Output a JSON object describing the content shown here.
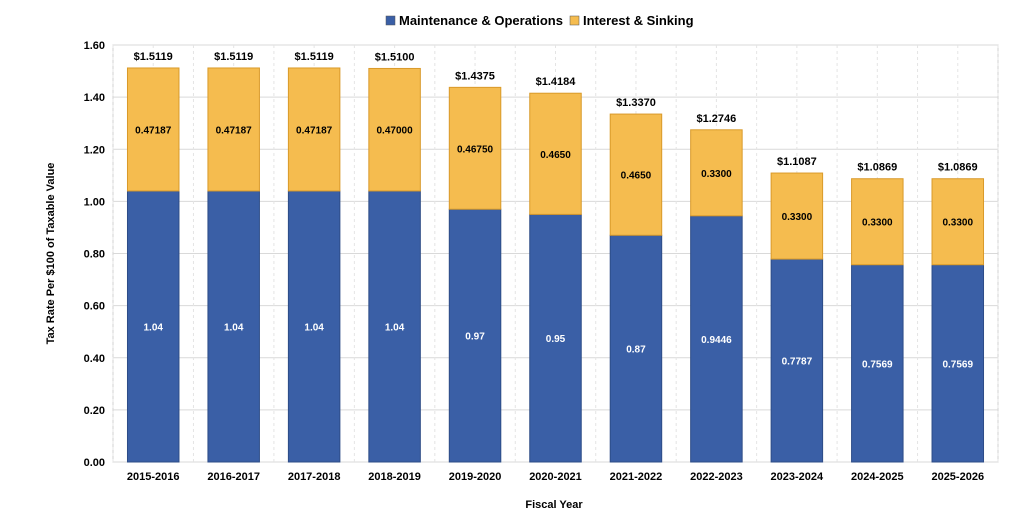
{
  "chart_data": {
    "type": "bar",
    "stacked": true,
    "title": "",
    "xlabel": "Fiscal Year",
    "ylabel": "Tax Rate Per $100 of Taxable Value",
    "ylim": [
      0,
      1.6
    ],
    "yticks": [
      "0.00",
      "0.20",
      "0.40",
      "0.60",
      "0.80",
      "1.00",
      "1.20",
      "1.40",
      "1.60"
    ],
    "grid": true,
    "legend_position": "top",
    "categories": [
      "2015-2016",
      "2016-2017",
      "2017-2018",
      "2018-2019",
      "2019-2020",
      "2020-2021",
      "2021-2022",
      "2022-2023",
      "2023-2024",
      "2024-2025",
      "2025-2026"
    ],
    "series": [
      {
        "name": "Maintenance & Operations",
        "color": "#3A5FA6",
        "values": [
          1.04,
          1.04,
          1.04,
          1.04,
          0.97,
          0.95,
          0.87,
          0.9446,
          0.7787,
          0.7569,
          0.7569
        ],
        "labels": [
          "1.04",
          "1.04",
          "1.04",
          "1.04",
          "0.97",
          "0.95",
          "0.87",
          "0.9446",
          "0.7787",
          "0.7569",
          "0.7569"
        ]
      },
      {
        "name": "Interest & Sinking",
        "color": "#F5BC4F",
        "values": [
          0.47187,
          0.47187,
          0.47187,
          0.47,
          0.4675,
          0.465,
          0.465,
          0.33,
          0.33,
          0.33,
          0.33
        ],
        "labels": [
          "0.47187",
          "0.47187",
          "0.47187",
          "0.47000",
          "0.46750",
          "0.4650",
          "0.4650",
          "0.3300",
          "0.3300",
          "0.3300",
          "0.3300"
        ]
      }
    ],
    "totals": [
      "$1.5119",
      "$1.5119",
      "$1.5119",
      "$1.5100",
      "$1.4375",
      "$1.4184",
      "$1.3370",
      "$1.2746",
      "$1.1087",
      "$1.0869",
      "$1.0869"
    ]
  }
}
